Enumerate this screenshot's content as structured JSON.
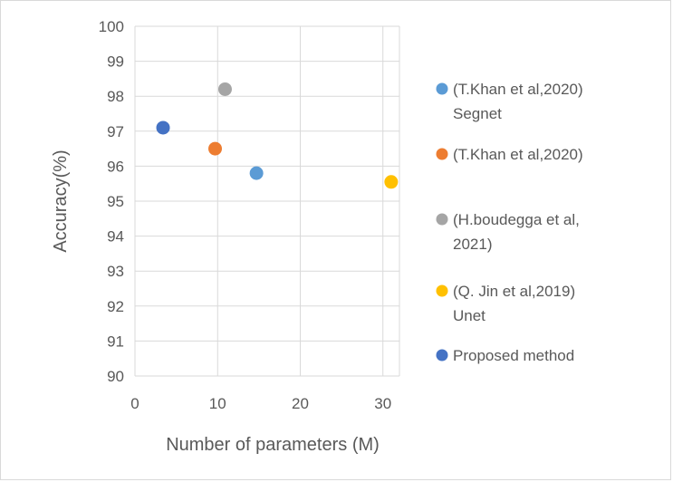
{
  "chart_data": {
    "type": "scatter",
    "title": "",
    "xlabel": "Number of parameters (M)",
    "ylabel": "Accuracy(%)",
    "xlim": [
      0,
      32
    ],
    "ylim": [
      90,
      100
    ],
    "xticks": [
      0,
      10,
      20,
      30
    ],
    "yticks": [
      90,
      91,
      92,
      93,
      94,
      95,
      96,
      97,
      98,
      99,
      100
    ],
    "grid": "major gridlines on both axes",
    "legend_position": "right",
    "series": [
      {
        "name_lines": [
          "(T.Khan et al,2020)",
          "Segnet"
        ],
        "color": "#5b9bd5",
        "points": [
          [
            14.7,
            95.8
          ]
        ]
      },
      {
        "name_lines": [
          "(T.Khan et al,2020)"
        ],
        "color": "#ed7d31",
        "points": [
          [
            9.7,
            96.5
          ]
        ]
      },
      {
        "name_lines": [
          "(H.boudegga et al,",
          "2021)"
        ],
        "color": "#a5a5a5",
        "points": [
          [
            10.9,
            98.2
          ]
        ]
      },
      {
        "name_lines": [
          "(Q. Jin et al,2019)",
          "Unet"
        ],
        "color": "#ffc000",
        "points": [
          [
            31.0,
            95.55
          ]
        ]
      },
      {
        "name_lines": [
          "Proposed method"
        ],
        "color": "#4472c4",
        "points": [
          [
            3.4,
            97.1
          ]
        ]
      }
    ]
  }
}
